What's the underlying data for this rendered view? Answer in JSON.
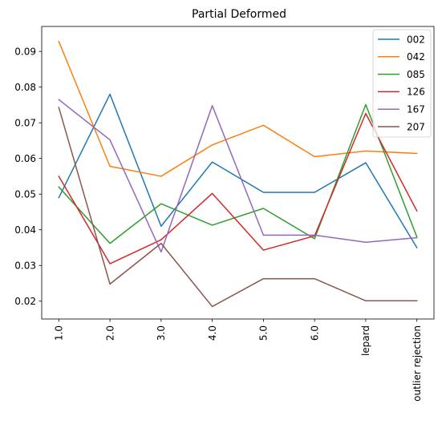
{
  "chart_data": {
    "type": "line",
    "title": "Partial Deformed",
    "xlabel": "",
    "ylabel": "",
    "categories": [
      "1.0",
      "2.0",
      "3.0",
      "4.0",
      "5.0",
      "6.0",
      "lepard",
      "outlier rejection"
    ],
    "ylim": [
      0.015,
      0.097
    ],
    "yticks": [
      0.02,
      0.03,
      0.04,
      0.05,
      0.06,
      0.07,
      0.08,
      0.09
    ],
    "ytick_labels": [
      "0.02",
      "0.03",
      "0.04",
      "0.05",
      "0.06",
      "0.07",
      "0.08",
      "0.09"
    ],
    "grid": false,
    "legend_position": "top-right",
    "series": [
      {
        "name": "002",
        "color": "#1f77b4",
        "values": [
          0.049,
          0.078,
          0.041,
          0.059,
          0.0505,
          0.0505,
          0.0588,
          0.035
        ]
      },
      {
        "name": "042",
        "color": "#ff7f0e",
        "values": [
          0.0928,
          0.0578,
          0.055,
          0.0638,
          0.0693,
          0.0605,
          0.0621,
          0.0614
        ]
      },
      {
        "name": "085",
        "color": "#2ca02c",
        "values": [
          0.052,
          0.0362,
          0.0473,
          0.0413,
          0.046,
          0.0375,
          0.0751,
          0.038
        ]
      },
      {
        "name": "126",
        "color": "#d62728",
        "values": [
          0.055,
          0.0305,
          0.0372,
          0.0502,
          0.0343,
          0.0383,
          0.0726,
          0.0453
        ]
      },
      {
        "name": "167",
        "color": "#9467bd",
        "values": [
          0.0765,
          0.0652,
          0.0338,
          0.0748,
          0.0385,
          0.0385,
          0.0365,
          0.0378
        ]
      },
      {
        "name": "207",
        "color": "#8c564b",
        "values": [
          0.0743,
          0.0248,
          0.0362,
          0.0185,
          0.0263,
          0.0263,
          0.0201,
          0.0201
        ]
      }
    ]
  }
}
